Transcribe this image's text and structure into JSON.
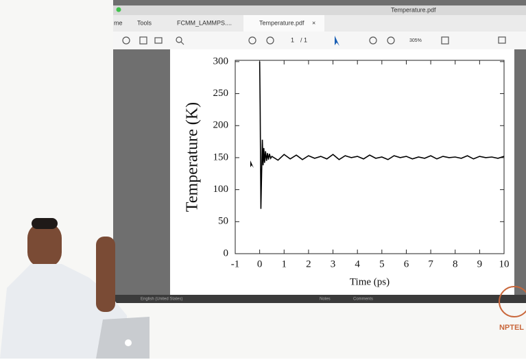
{
  "window": {
    "title": "Temperature.pdf"
  },
  "tabs": [
    "me",
    "Tools",
    "FCMM_LAMMPS....",
    "Temperature.pdf"
  ],
  "tab_close": "×",
  "toolbar": {
    "page": "1",
    "page_total": "/ 1",
    "zoom": "305%"
  },
  "status_bar": {
    "language": "English (United States)",
    "notes": "Notes",
    "comments": "Comments"
  },
  "logo": "NPTEL",
  "chart_data": {
    "type": "line",
    "xlabel": "Time (ps)",
    "ylabel": "Temperature (K)",
    "x": [
      0,
      0.02,
      0.05,
      0.08,
      0.11,
      0.14,
      0.17,
      0.2,
      0.24,
      0.28,
      0.32,
      0.36,
      0.4,
      0.45,
      0.5,
      0.75,
      1,
      1.25,
      1.5,
      1.75,
      2,
      2.25,
      2.5,
      2.75,
      3,
      3.25,
      3.5,
      3.75,
      4,
      4.25,
      4.5,
      4.75,
      5,
      5.25,
      5.5,
      5.75,
      6,
      6.25,
      6.5,
      6.75,
      7,
      7.25,
      7.5,
      7.75,
      8,
      8.25,
      8.5,
      8.75,
      9,
      9.25,
      9.5,
      9.75,
      10
    ],
    "series": [
      {
        "color": "#000000",
        "values": [
          300,
          230,
          70,
          125,
          178,
          138,
          165,
          142,
          160,
          145,
          157,
          147,
          156,
          149,
          152,
          146,
          155,
          148,
          154,
          147,
          153,
          149,
          152,
          148,
          155,
          147,
          153,
          150,
          152,
          148,
          154,
          149,
          151,
          147,
          153,
          150,
          152,
          148,
          151,
          149,
          153,
          148,
          152,
          150,
          151,
          149,
          153,
          148,
          152,
          150,
          151,
          149,
          152
        ]
      }
    ],
    "xlim": [
      -1,
      10
    ],
    "ylim": [
      0,
      302
    ],
    "xticks": [
      -1,
      0,
      1,
      2,
      3,
      4,
      5,
      6,
      7,
      8,
      9,
      10
    ],
    "yticks": [
      0,
      50,
      100,
      150,
      200,
      250,
      300
    ]
  }
}
